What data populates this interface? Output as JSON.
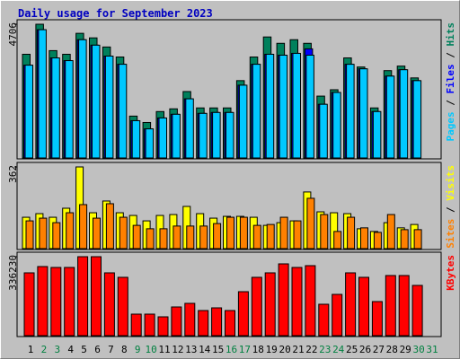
{
  "chart_data": {
    "type": "bar",
    "title": "Daily usage for September 2023",
    "categories": [
      "1",
      "2",
      "3",
      "4",
      "5",
      "6",
      "7",
      "8",
      "9",
      "10",
      "11",
      "12",
      "13",
      "14",
      "15",
      "16",
      "17",
      "18",
      "19",
      "20",
      "21",
      "22",
      "23",
      "24",
      "25",
      "26",
      "27",
      "28",
      "29",
      "30",
      "31"
    ],
    "category_colors": [
      "#000000",
      "#008040",
      "#008040",
      "#000000",
      "#000000",
      "#000000",
      "#000000",
      "#000000",
      "#008040",
      "#008040",
      "#000000",
      "#000000",
      "#000000",
      "#000000",
      "#000000",
      "#008040",
      "#008040",
      "#000000",
      "#000000",
      "#000000",
      "#000000",
      "#000000",
      "#008040",
      "#008040",
      "#000000",
      "#000000",
      "#000000",
      "#000000",
      "#000000",
      "#008040",
      "#008040"
    ],
    "legend_separator": " / ",
    "panels": [
      {
        "ylim": [
          0,
          4706
        ],
        "yticks": [
          4706
        ],
        "series": [
          {
            "name": "Hits",
            "color": "#00805c",
            "values": [
              3649,
              4706,
              3777,
              3649,
              4386,
              4226,
              3905,
              3553,
              1473,
              1248,
              1633,
              1729,
              2337,
              1761,
              1761,
              1761,
              2721,
              3553,
              4258,
              4034,
              4162,
              4034,
              2177,
              2401,
              3521,
              3201,
              1761,
              3073,
              3233,
              2817,
              null
            ]
          },
          {
            "name": "Files",
            "color": "#0000ff",
            "values": [
              3265,
              4514,
              3521,
              3425,
              4162,
              3969,
              3585,
              3297,
              1312,
              1024,
              1408,
              1537,
              2081,
              1569,
              1601,
              1601,
              2561,
              3297,
              3649,
              3617,
              3681,
              3841,
              1889,
              2305,
              3297,
              3137,
              1633,
              2881,
              3105,
              2721,
              null
            ]
          },
          {
            "name": "Pages",
            "color": "#00c8ff",
            "values": [
              3265,
              4514,
              3521,
              3425,
              4162,
              3969,
              3585,
              3297,
              1312,
              1024,
              1408,
              1537,
              2081,
              1569,
              1601,
              1601,
              2561,
              3297,
              3649,
              3617,
              3681,
              3617,
              1889,
              2305,
              3297,
              3137,
              1633,
              2881,
              3105,
              2721,
              null
            ]
          }
        ]
      },
      {
        "ylim": [
          0,
          362
        ],
        "yticks": [
          362
        ],
        "series": [
          {
            "name": "Visits",
            "color": "#ffff00",
            "values": [
              139,
              155,
              139,
              179,
              362,
              159,
              211,
              159,
              147,
              123,
              147,
              151,
              187,
              155,
              135,
              143,
              143,
              139,
              103,
              115,
              123,
              251,
              163,
              159,
              155,
              88,
              76,
              115,
              92,
              107,
              null
            ]
          },
          {
            "name": "Sites",
            "color": "#ff8000",
            "values": [
              123,
              135,
              115,
              159,
              195,
              135,
              199,
              139,
              103,
              88,
              88,
              100,
              100,
              100,
              111,
              139,
              139,
              103,
              107,
              139,
              123,
              223,
              151,
              76,
              139,
              92,
              72,
              151,
              84,
              84,
              null
            ]
          }
        ]
      },
      {
        "ylim": [
          0,
          336230
        ],
        "yticks": [
          336230
        ],
        "series": [
          {
            "name": "KBytes",
            "color": "#ff0000",
            "values": [
              267470,
              294220,
              290400,
              290400,
              336230,
              336230,
              267470,
              248370,
              91700,
              91700,
              80240,
              122270,
              137560,
              106990,
              118450,
              106990,
              187230,
              248370,
              267470,
              305680,
              290400,
              298040,
              133740,
              175770,
              267470,
              248370,
              145200,
              256010,
              256010,
              213980,
              null
            ]
          }
        ]
      }
    ]
  }
}
